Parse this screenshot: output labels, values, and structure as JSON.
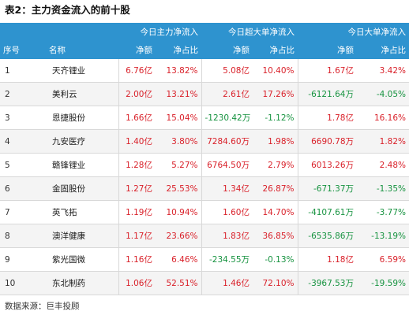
{
  "title": "表2：主力资金流入的前十股",
  "header": {
    "col_index": "序号",
    "col_name": "名称",
    "group_main": "今日主力净流入",
    "group_super": "今日超大单净流入",
    "group_large": "今日大单净流入",
    "net_amount": "净额",
    "net_ratio": "净占比"
  },
  "rows": [
    {
      "idx": "1",
      "name": "天齐锂业",
      "m_amt": "6.76亿",
      "m_ratio": "13.82%",
      "s_amt": "5.08亿",
      "s_ratio": "10.40%",
      "l_amt": "1.67亿",
      "l_ratio": "3.42%",
      "colors": [
        "red",
        "red",
        "red",
        "red",
        "red",
        "red"
      ]
    },
    {
      "idx": "2",
      "name": "美利云",
      "m_amt": "2.00亿",
      "m_ratio": "13.21%",
      "s_amt": "2.61亿",
      "s_ratio": "17.26%",
      "l_amt": "-6121.64万",
      "l_ratio": "-4.05%",
      "colors": [
        "red",
        "red",
        "red",
        "red",
        "green",
        "green"
      ]
    },
    {
      "idx": "3",
      "name": "恩捷股份",
      "m_amt": "1.66亿",
      "m_ratio": "15.04%",
      "s_amt": "-1230.42万",
      "s_ratio": "-1.12%",
      "l_amt": "1.78亿",
      "l_ratio": "16.16%",
      "colors": [
        "red",
        "red",
        "green",
        "green",
        "red",
        "red"
      ]
    },
    {
      "idx": "4",
      "name": "九安医疗",
      "m_amt": "1.40亿",
      "m_ratio": "3.80%",
      "s_amt": "7284.60万",
      "s_ratio": "1.98%",
      "l_amt": "6690.78万",
      "l_ratio": "1.82%",
      "colors": [
        "red",
        "red",
        "red",
        "red",
        "red",
        "red"
      ]
    },
    {
      "idx": "5",
      "name": "赣锋锂业",
      "m_amt": "1.28亿",
      "m_ratio": "5.27%",
      "s_amt": "6764.50万",
      "s_ratio": "2.79%",
      "l_amt": "6013.26万",
      "l_ratio": "2.48%",
      "colors": [
        "red",
        "red",
        "red",
        "red",
        "red",
        "red"
      ]
    },
    {
      "idx": "6",
      "name": "金固股份",
      "m_amt": "1.27亿",
      "m_ratio": "25.53%",
      "s_amt": "1.34亿",
      "s_ratio": "26.87%",
      "l_amt": "-671.37万",
      "l_ratio": "-1.35%",
      "colors": [
        "red",
        "red",
        "red",
        "red",
        "green",
        "green"
      ]
    },
    {
      "idx": "7",
      "name": "英飞拓",
      "m_amt": "1.19亿",
      "m_ratio": "10.94%",
      "s_amt": "1.60亿",
      "s_ratio": "14.70%",
      "l_amt": "-4107.61万",
      "l_ratio": "-3.77%",
      "colors": [
        "red",
        "red",
        "red",
        "red",
        "green",
        "green"
      ]
    },
    {
      "idx": "8",
      "name": "澳洋健康",
      "m_amt": "1.17亿",
      "m_ratio": "23.66%",
      "s_amt": "1.83亿",
      "s_ratio": "36.85%",
      "l_amt": "-6535.86万",
      "l_ratio": "-13.19%",
      "colors": [
        "red",
        "red",
        "red",
        "red",
        "green",
        "green"
      ]
    },
    {
      "idx": "9",
      "name": "紫光国微",
      "m_amt": "1.16亿",
      "m_ratio": "6.46%",
      "s_amt": "-234.55万",
      "s_ratio": "-0.13%",
      "l_amt": "1.18亿",
      "l_ratio": "6.59%",
      "colors": [
        "red",
        "red",
        "green",
        "green",
        "red",
        "red"
      ]
    },
    {
      "idx": "10",
      "name": "东北制药",
      "m_amt": "1.06亿",
      "m_ratio": "52.51%",
      "s_amt": "1.46亿",
      "s_ratio": "72.10%",
      "l_amt": "-3967.53万",
      "l_ratio": "-19.59%",
      "colors": [
        "red",
        "red",
        "red",
        "red",
        "green",
        "green"
      ]
    }
  ],
  "footer": "数据来源：巨丰投顾",
  "colors": {
    "header_bg": "#2e93cf",
    "positive": "#d9212a",
    "negative": "#179340"
  }
}
